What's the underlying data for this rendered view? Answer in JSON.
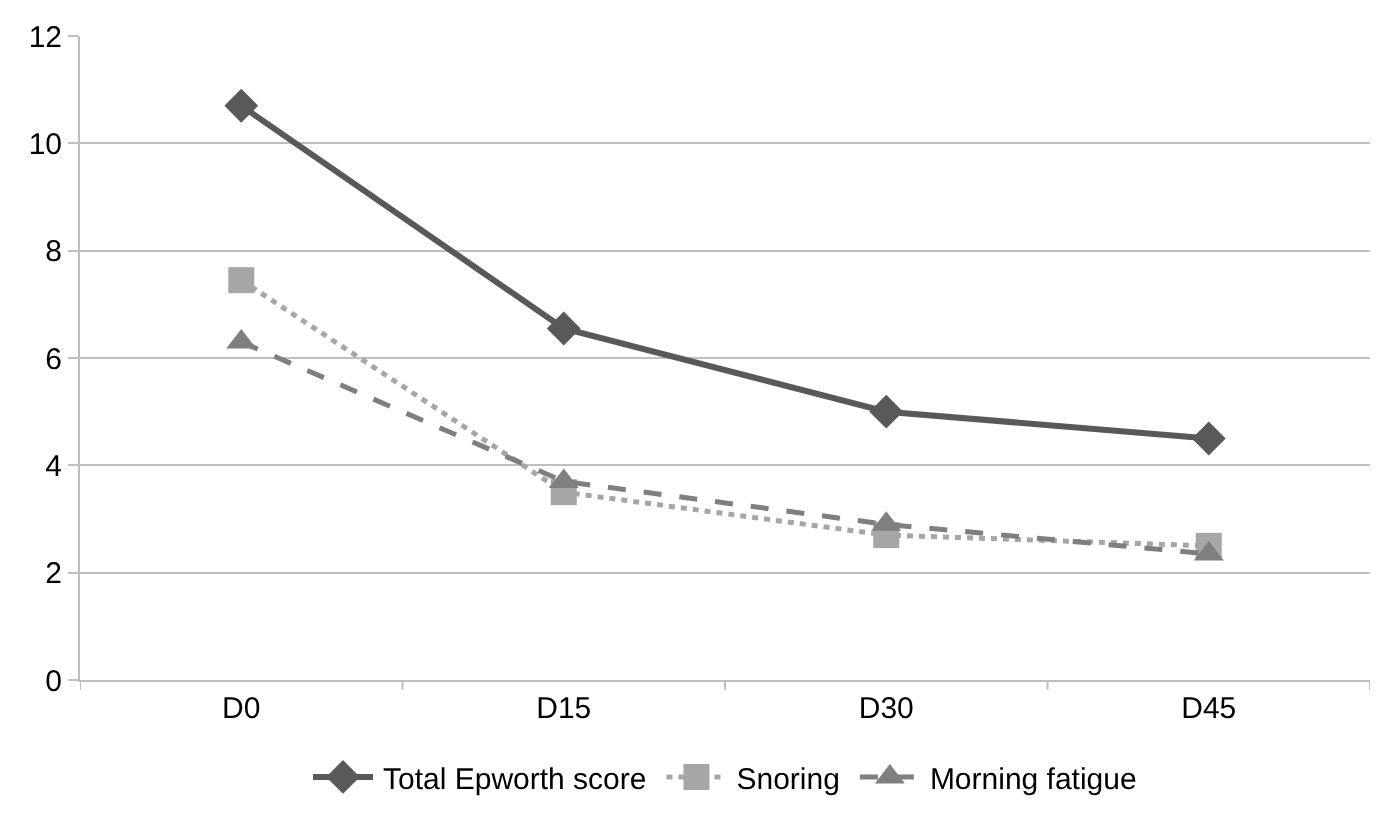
{
  "chart_data": {
    "type": "line",
    "categories": [
      "D0",
      "D15",
      "D30",
      "D45"
    ],
    "series": [
      {
        "name": "Total Epworth score",
        "color": "#595959",
        "marker": "diamond",
        "line_style": "solid",
        "values": [
          10.7,
          6.55,
          5.0,
          4.5
        ]
      },
      {
        "name": "Snoring",
        "color": "#a6a6a6",
        "marker": "square",
        "line_style": "dotted",
        "values": [
          7.45,
          3.5,
          2.7,
          2.5
        ]
      },
      {
        "name": "Morning fatigue",
        "color": "#7f7f7f",
        "marker": "triangle",
        "line_style": "dashed",
        "values": [
          6.3,
          3.7,
          2.9,
          2.35
        ]
      }
    ],
    "ylim": [
      0,
      12
    ],
    "yticks": [
      0,
      2,
      4,
      6,
      8,
      10,
      12
    ],
    "grid": "y",
    "legend": "bottom"
  }
}
